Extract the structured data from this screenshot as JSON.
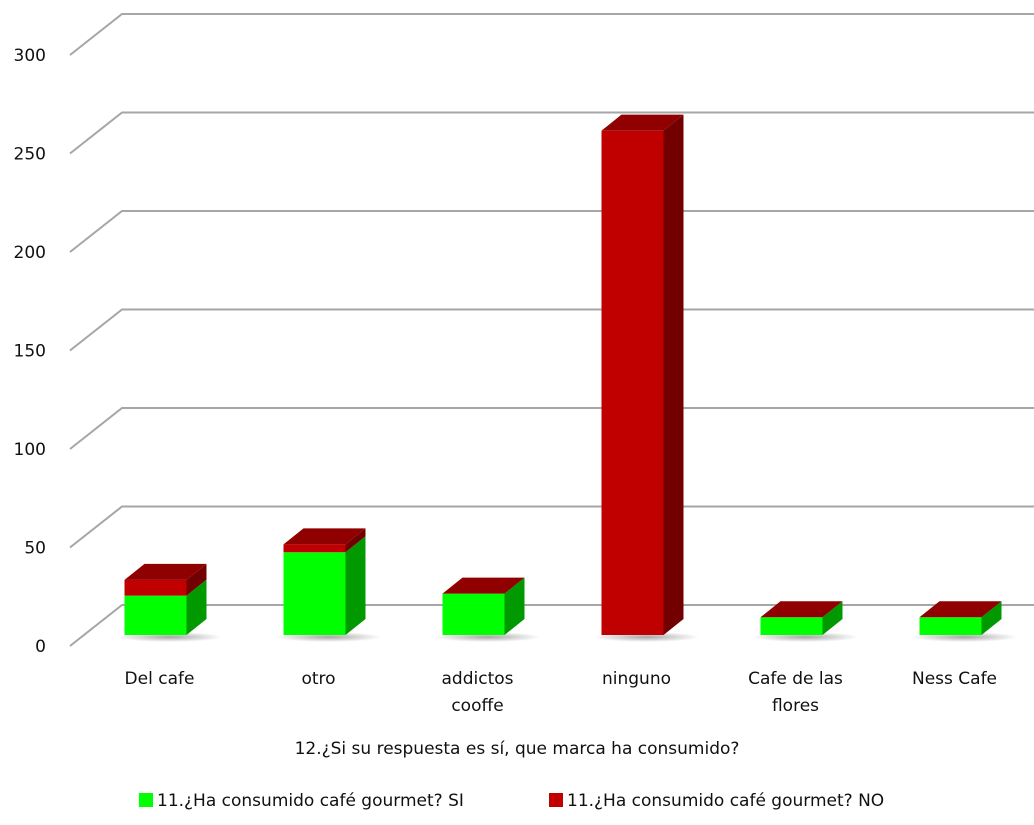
{
  "chart_data": {
    "type": "bar",
    "stacked": true,
    "three_d": true,
    "title": "",
    "xlabel": "12.¿Si su respuesta es sí, que marca ha consumido?",
    "ylabel": "",
    "categories": [
      [
        "Del cafe"
      ],
      [
        "otro"
      ],
      [
        "addictos",
        "cooffe"
      ],
      [
        "ninguno"
      ],
      [
        "Cafe de las",
        "flores"
      ],
      [
        "Ness Cafe"
      ]
    ],
    "series": [
      {
        "name": "11.¿Ha consumido café gourmet? SI",
        "color": "#00ff00",
        "values": [
          20,
          42,
          21,
          0,
          9,
          9
        ]
      },
      {
        "name": "11.¿Ha consumido café gourmet? NO",
        "color": "#c00000",
        "values": [
          8,
          4,
          0,
          256,
          0,
          0
        ]
      }
    ],
    "yticks": [
      0,
      50,
      100,
      150,
      200,
      250,
      300
    ],
    "ylim": [
      0,
      300
    ],
    "grid": true,
    "legend_position": "bottom"
  }
}
